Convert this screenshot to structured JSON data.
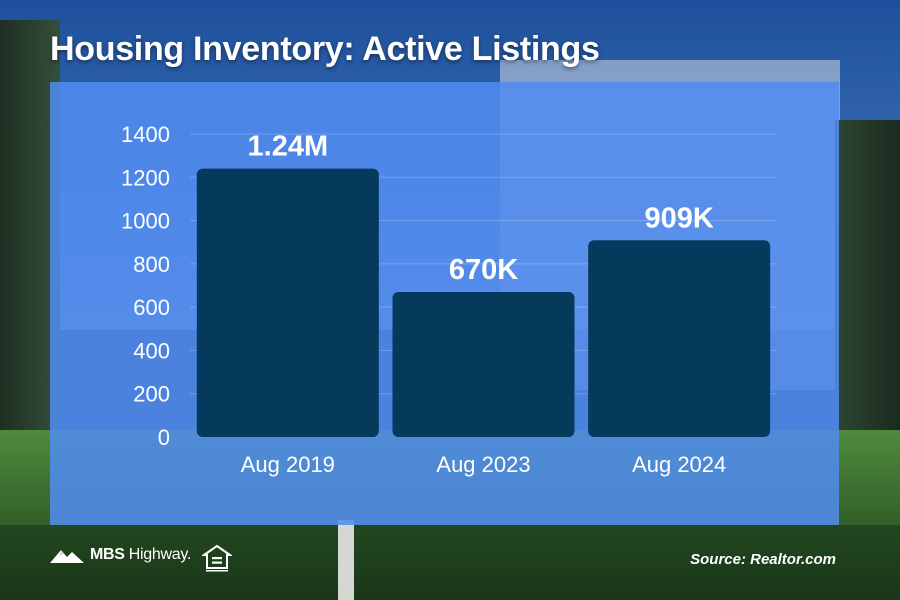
{
  "title": "Housing Inventory: Active Listings",
  "footer": {
    "brand_bold": "MBS",
    "brand_rest": " Highway.",
    "source": "Source: Realtor.com"
  },
  "colors": {
    "bar": "#053a5c",
    "panel": "#508cf0",
    "text": "#ffffff"
  },
  "chart_data": {
    "type": "bar",
    "title": "Housing Inventory: Active Listings",
    "categories": [
      "Aug 2019",
      "Aug 2023",
      "Aug 2024"
    ],
    "values": [
      1240,
      670,
      909
    ],
    "data_labels": [
      "1.24M",
      "670K",
      "909K"
    ],
    "yticks": [
      0,
      200,
      400,
      600,
      800,
      1000,
      1200,
      1400
    ],
    "ylim": [
      0,
      1400
    ],
    "grid": true,
    "legend": "none"
  }
}
